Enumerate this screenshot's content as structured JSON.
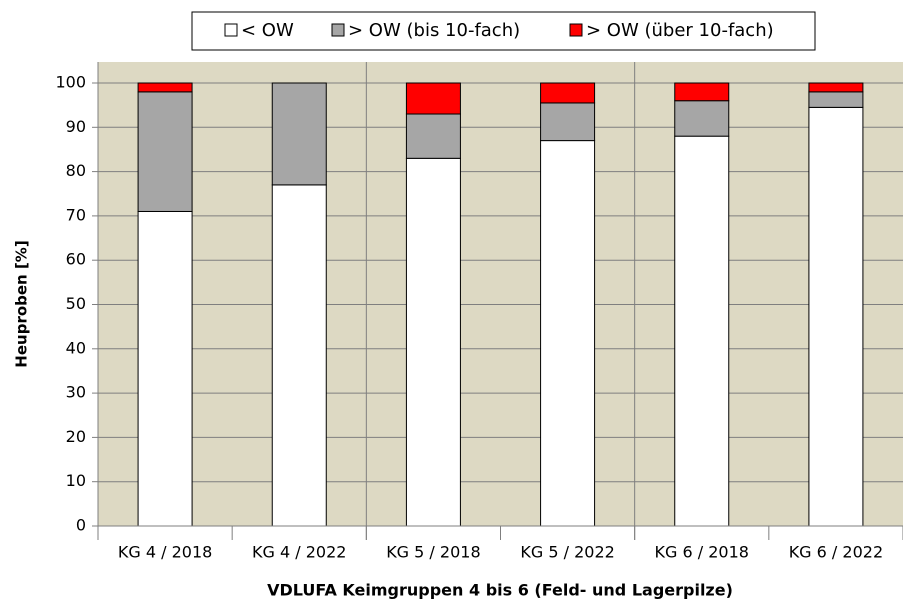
{
  "chart_data": {
    "type": "stacked-bar",
    "categories": [
      "KG 4 / 2018",
      "KG 4 / 2022",
      "KG 5 / 2018",
      "KG 5 / 2022",
      "KG 6 / 2018",
      "KG 6 / 2022"
    ],
    "series": [
      {
        "name": "< OW",
        "color": "#ffffff",
        "values": [
          71,
          77,
          83,
          87,
          88,
          94.5
        ]
      },
      {
        "name": "> OW (bis 10-fach)",
        "color": "#a6a6a6",
        "values": [
          27,
          23,
          10,
          8.5,
          8,
          3.5
        ]
      },
      {
        "name": "> OW (über 10-fach)",
        "color": "#ff0000",
        "values": [
          2,
          0,
          7,
          4.5,
          4,
          2
        ]
      }
    ],
    "ylabel": "Heuproben [%]",
    "xlabel": "VDLUFA Keimgruppen 4 bis 6 (Feld- und Lagerpilze)",
    "ylim": [
      0,
      100
    ],
    "yticks": [
      0,
      10,
      20,
      30,
      40,
      50,
      60,
      70,
      80,
      90,
      100
    ],
    "grid": true,
    "legend": "top",
    "background": "#ddd9c3"
  }
}
